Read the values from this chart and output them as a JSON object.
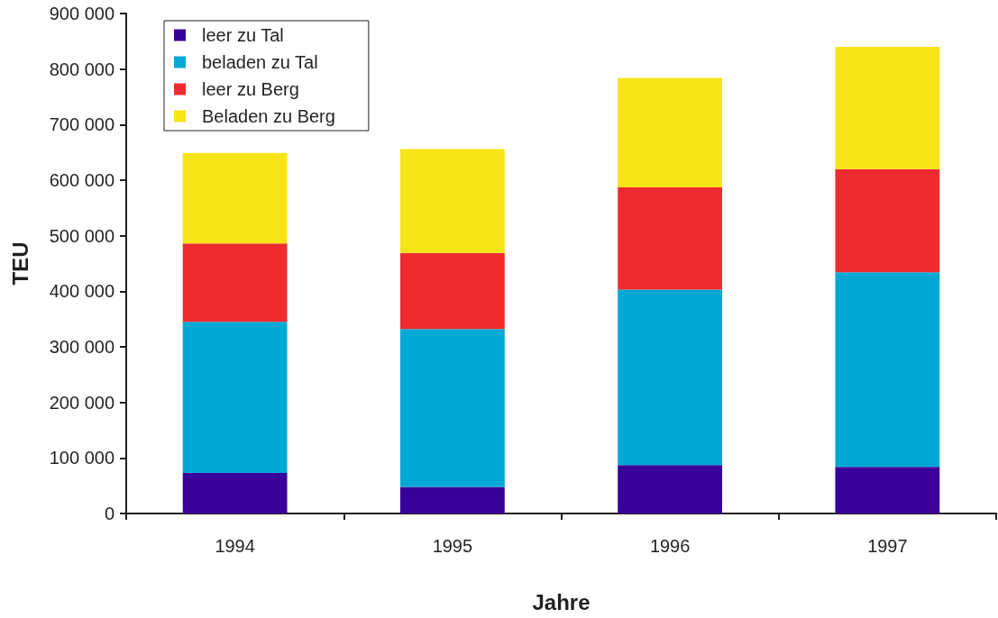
{
  "chart_data": {
    "type": "bar",
    "stacked": true,
    "xlabel": "Jahre",
    "ylabel": "TEU",
    "categories": [
      "1994",
      "1995",
      "1996",
      "1997"
    ],
    "series": [
      {
        "name": "leer zu Tal",
        "color": "#380099",
        "values": [
          73000,
          48000,
          87000,
          84000
        ]
      },
      {
        "name": "beladen zu Tal",
        "color": "#00a8d4",
        "values": [
          272000,
          284000,
          316000,
          350000
        ]
      },
      {
        "name": "leer zu Berg",
        "color": "#ee2c30",
        "values": [
          141000,
          137000,
          184000,
          186000
        ]
      },
      {
        "name": "Beladen zu Berg",
        "color": "#f7e416",
        "values": [
          163000,
          187000,
          197000,
          220000
        ]
      }
    ],
    "ylim": [
      0,
      900000
    ],
    "yticks": [
      0,
      {
        "value": 100000,
        "label": "100 000"
      },
      {
        "value": 200000,
        "label": "200 000"
      },
      {
        "value": 300000,
        "label": "300 000"
      },
      {
        "value": 400000,
        "label": "400 000"
      },
      {
        "value": 500000,
        "label": "500 000"
      },
      {
        "value": 600000,
        "label": "600 000"
      },
      {
        "value": 700000,
        "label": "700 000"
      },
      {
        "value": 800000,
        "label": "800 000"
      },
      {
        "value": 900000,
        "label": "900 000"
      }
    ],
    "grid": false,
    "legend": "top left"
  }
}
